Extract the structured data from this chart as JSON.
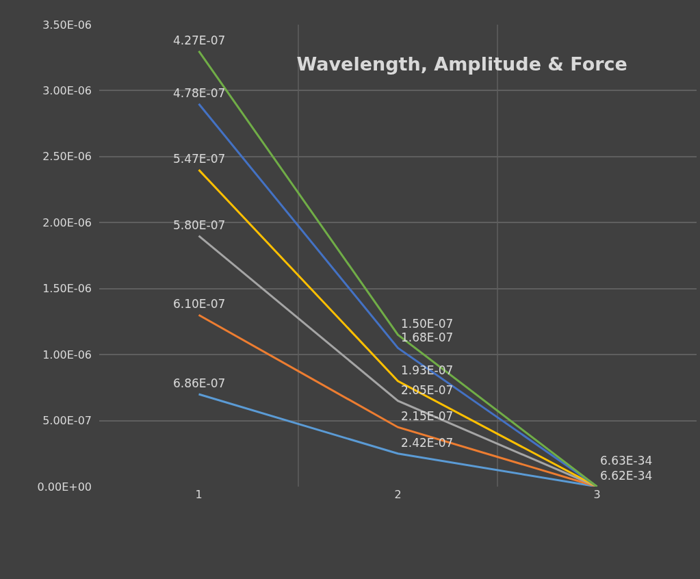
{
  "chart_data": {
    "type": "line",
    "title": "Wavelength, Amplitude & Force",
    "categories": [
      "1",
      "2",
      "3"
    ],
    "series": [
      {
        "color": "#5b9bd5",
        "values": [
          7e-07,
          2.5e-07,
          0
        ]
      },
      {
        "color": "#ed7d31",
        "values": [
          1.3e-06,
          4.5e-07,
          0
        ]
      },
      {
        "color": "#a5a5a5",
        "values": [
          1.9e-06,
          6.5e-07,
          0
        ]
      },
      {
        "color": "#ffc000",
        "values": [
          2.4e-06,
          8e-07,
          0
        ]
      },
      {
        "color": "#4472c4",
        "values": [
          2.9e-06,
          1.05e-06,
          0
        ]
      },
      {
        "color": "#70ad47",
        "values": [
          3.3e-06,
          1.15e-06,
          0
        ]
      }
    ],
    "annotations": [
      {
        "text": "6.86E-07",
        "x": "1",
        "y": 7e-07
      },
      {
        "text": "2.42E-07",
        "x": "2",
        "y": 2.5e-07
      },
      {
        "text": "6.10E-07",
        "x": "1",
        "y": 1.3e-06
      },
      {
        "text": "2.15E-07",
        "x": "2",
        "y": 4.5e-07
      },
      {
        "text": "5.80E-07",
        "x": "1",
        "y": 1.9e-06
      },
      {
        "text": "2.05E-07",
        "x": "2",
        "y": 6.5e-07
      },
      {
        "text": "5.47E-07",
        "x": "1",
        "y": 2.4e-06
      },
      {
        "text": "1.93E-07",
        "x": "2",
        "y": 8e-07
      },
      {
        "text": "4.78E-07",
        "x": "1",
        "y": 2.9e-06
      },
      {
        "text": "1.68E-07",
        "x": "2",
        "y": 1.05e-06
      },
      {
        "text": "6.62E-34",
        "x": "3",
        "y": 0
      },
      {
        "text": "4.27E-07",
        "x": "1",
        "y": 3.3e-06
      },
      {
        "text": "1.50E-07",
        "x": "2",
        "y": 1.15e-06
      },
      {
        "text": "6.63E-34",
        "x": "3",
        "y": 0
      }
    ],
    "ylim": [
      0,
      3.5e-06
    ],
    "yticks": [
      {
        "value": 0,
        "label": "0.00E+00"
      },
      {
        "value": 5e-07,
        "label": "5.00E-07"
      },
      {
        "value": 1e-06,
        "label": "1.00E-06"
      },
      {
        "value": 1.5e-06,
        "label": "1.50E-06"
      },
      {
        "value": 2e-06,
        "label": "2.00E-06"
      },
      {
        "value": 2.5e-06,
        "label": "2.50E-06"
      },
      {
        "value": 3e-06,
        "label": "3.00E-06"
      },
      {
        "value": 3.5e-06,
        "label": "3.50E-06"
      }
    ],
    "grid": true,
    "marker": "none",
    "line_style": "solid"
  }
}
